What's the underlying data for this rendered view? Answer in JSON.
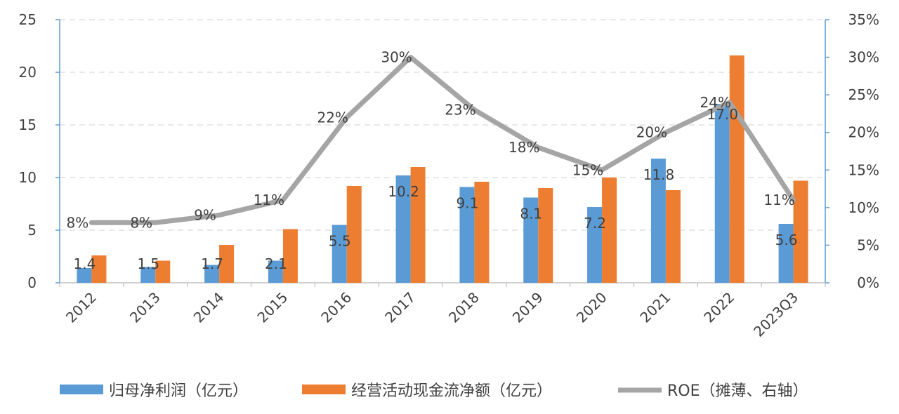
{
  "chart_data": {
    "type": "bar",
    "categories": [
      "2012",
      "2013",
      "2014",
      "2015",
      "2016",
      "2017",
      "2018",
      "2019",
      "2020",
      "2021",
      "2022",
      "2023Q3"
    ],
    "series": [
      {
        "name": "归母净利润（亿元）",
        "type": "bar",
        "axis": "left",
        "color": "#5B9BD5",
        "values": [
          1.4,
          1.5,
          1.7,
          2.1,
          5.5,
          10.2,
          9.1,
          8.1,
          7.2,
          11.8,
          17.0,
          5.6
        ],
        "labels": [
          "1.4",
          "1.5",
          "1.7",
          "2.1",
          "5.5",
          "10.2",
          "9.1",
          "8.1",
          "7.2",
          "11.8",
          "17.0",
          "5.6"
        ]
      },
      {
        "name": "经营活动现金流净额（亿元）",
        "type": "bar",
        "axis": "left",
        "color": "#ED7D31",
        "values": [
          2.6,
          2.1,
          3.6,
          5.1,
          9.2,
          11.0,
          9.6,
          9.0,
          10.0,
          8.8,
          21.6,
          9.7
        ]
      },
      {
        "name": "ROE（摊薄、右轴）",
        "type": "line",
        "axis": "right",
        "color": "#A5A5A5",
        "values": [
          8,
          8,
          9,
          11,
          22,
          30,
          23,
          18,
          15,
          20,
          24,
          11
        ],
        "labels": [
          "8%",
          "8%",
          "9%",
          "11%",
          "22%",
          "30%",
          "23%",
          "18%",
          "15%",
          "20%",
          "24%",
          "11%"
        ]
      }
    ],
    "y_left": {
      "min": 0,
      "max": 25,
      "ticks": [
        "0",
        "5",
        "10",
        "15",
        "20",
        "25"
      ]
    },
    "y_right": {
      "min": 0,
      "max": 35,
      "ticks": [
        "0%",
        "5%",
        "10%",
        "15%",
        "20%",
        "25%",
        "30%",
        "35%"
      ]
    },
    "grid": "horizontal-dashed",
    "legend_position": "bottom"
  }
}
